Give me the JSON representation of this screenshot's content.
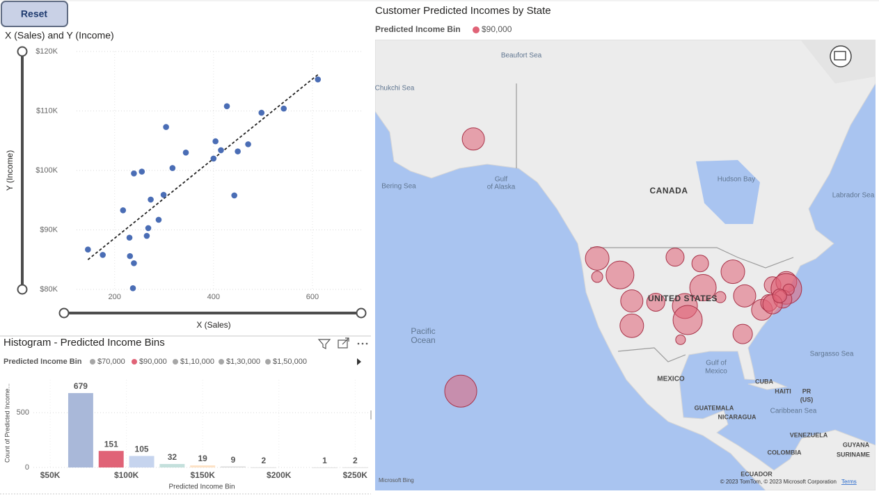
{
  "reset_button": "Reset",
  "chart_data": [
    {
      "type": "scatter",
      "title": "X (Sales) and Y (Income)",
      "xlabel": "X (Sales)",
      "ylabel": "Y (Income)",
      "color": "#4a6db5",
      "x": [
        146,
        176,
        217,
        230,
        231,
        239,
        239,
        255,
        265,
        268,
        273,
        289,
        299,
        304,
        317,
        344,
        404,
        415,
        427,
        449,
        470,
        442,
        497,
        542,
        611,
        237,
        400
      ],
      "y": [
        86700,
        85800,
        93300,
        88700,
        85600,
        84400,
        99500,
        99800,
        89000,
        90300,
        95100,
        91700,
        95900,
        107300,
        100400,
        103000,
        104900,
        103400,
        110800,
        103200,
        104400,
        95800,
        109700,
        110400,
        115300,
        80200,
        102000
      ],
      "trendline": {
        "x": [
          146,
          611
        ],
        "y": [
          85000,
          116100
        ],
        "color": "#222222"
      },
      "xlim": [
        123,
        700
      ],
      "ylim": [
        80000,
        120000
      ],
      "xticks": [
        200,
        400,
        600
      ],
      "yticks": [
        {
          "value": 80000,
          "label": "$80K"
        },
        {
          "value": 90000,
          "label": "$90K"
        },
        {
          "value": 100000,
          "label": "$100K"
        },
        {
          "value": 110000,
          "label": "$110K"
        },
        {
          "value": 120000,
          "label": "$120K"
        }
      ],
      "grid": true
    },
    {
      "type": "bar",
      "title": "Histogram - Predicted Income Bins",
      "legend_title": "Predicted Income Bin",
      "legend": [
        "$70,000",
        "$90,000",
        "$1,10,000",
        "$1,30,000",
        "$1,50,000"
      ],
      "legend_colors": [
        "#a6a6a6",
        "#e06377",
        "#a6a6a6",
        "#a6a6a6",
        "#a6a6a6"
      ],
      "xlabel": "Predicted Income Bin",
      "ylabel": "Count of Predicted Income...",
      "x": [
        70000,
        90000,
        110000,
        130000,
        150000,
        170000,
        190000,
        230000,
        250000
      ],
      "values": [
        679,
        151,
        105,
        32,
        19,
        9,
        2,
        1,
        2
      ],
      "colors": [
        "#a9b8d9",
        "#e06377",
        "#c6d4ee",
        "#c4e0dc",
        "#fde2c6",
        "#d8d8d8",
        "#e4e4e4",
        "#e4e4e4",
        "#e4e4e4"
      ],
      "xlim": [
        39000,
        259000
      ],
      "ylim": [
        0,
        800
      ],
      "xticks": [
        {
          "value": 50000,
          "label": "$50K"
        },
        {
          "value": 100000,
          "label": "$100K"
        },
        {
          "value": 150000,
          "label": "$150K"
        },
        {
          "value": 200000,
          "label": "$200K"
        },
        {
          "value": 250000,
          "label": "$250K"
        }
      ],
      "yticks": [
        0,
        500
      ],
      "grid": true
    },
    {
      "type": "map",
      "title": "Customer Predicted Incomes by State",
      "legend_title": "Predicted Income Bin",
      "series": [
        {
          "name": "$90,000",
          "color": "#e06377",
          "lon": [
            -150.2,
            -153.4,
            -118.7,
            -118.7,
            -112.9,
            -109.9,
            -109.9,
            -103.8,
            -98.9,
            -92.5,
            -91.8,
            -96.4,
            -95.7,
            -87.4,
            -84.2,
            -81.2,
            -81.7,
            -97.5,
            -76.8,
            -75.0,
            -74.1,
            -70.6,
            -70.6,
            -71.5,
            -74.1,
            -70.0,
            -72.3
          ],
          "lat": [
            63.0,
            23.3,
            44.2,
            41.3,
            41.6,
            37.5,
            33.6,
            37.3,
            44.4,
            43.4,
            39.6,
            36.7,
            34.5,
            38.1,
            42.1,
            38.3,
            32.3,
            31.4,
            36.1,
            37.2,
            40.0,
            40.5,
            39.4,
            37.8,
            37.0,
            39.3,
            38.3
          ],
          "sizes": [
            256,
            529,
            289,
            64,
            400,
            256,
            289,
            169,
            169,
            144,
            361,
            324,
            441,
            64,
            289,
            256,
            196,
            49,
            225,
            144,
            144,
            225,
            484,
            169,
            196,
            64,
            100
          ]
        }
      ],
      "labels": {
        "beaufort_sea": "Beaufort Sea",
        "chukchi_sea": "Chukchi Sea",
        "bering_sea": "Bering Sea",
        "gulf_of_alaska": [
          "Gulf",
          "of Alaska"
        ],
        "canada": "CANADA",
        "hudson_bay": "Hudson Bay",
        "labrador_sea": "Labrador Sea",
        "united_states": "UNITED STATES",
        "pacific_ocean": [
          "Pacific",
          "Ocean"
        ],
        "gulf_of_mexico": [
          "Gulf of",
          "Mexico"
        ],
        "mexico": "MEXICO",
        "cuba": "CUBA",
        "haiti": "HAITI",
        "pr_us": [
          "PR",
          "(US)"
        ],
        "sargasso_sea": "Sargasso Sea",
        "caribbean_sea": "Caribbean Sea",
        "guatemala": "GUATEMALA",
        "nicaragua": "NICARAGUA",
        "venezuela": "VENEZUELA",
        "guyana": "GUYANA",
        "colombia": "COLOMBIA",
        "suriname": "SURINAME",
        "ecuador": "ECUADOR",
        "attribution_bing": "Microsoft Bing",
        "attribution_copyright": "© 2023 TomTom, © 2023 Microsoft Corporation",
        "terms": "Terms"
      }
    }
  ]
}
